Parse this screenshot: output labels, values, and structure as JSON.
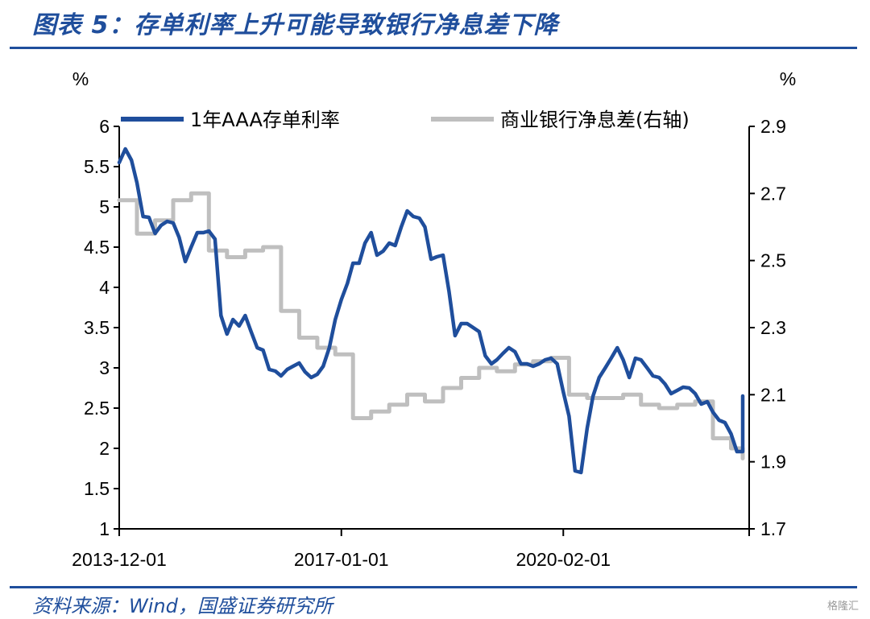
{
  "header": {
    "title": "图表 5：存单利率上升可能导致银行净息差下降"
  },
  "footer": {
    "source": "资料来源：Wind，国盛证券研究所",
    "watermark": "格隆汇"
  },
  "chart_data": {
    "type": "line",
    "title": "",
    "left_axis": {
      "unit_label": "%",
      "min": 1,
      "max": 6,
      "step": 0.5,
      "ticks": [
        "1",
        "1.5",
        "2",
        "2.5",
        "3",
        "3.5",
        "4",
        "4.5",
        "5",
        "5.5",
        "6"
      ]
    },
    "right_axis": {
      "unit_label": "%",
      "min": 1.7,
      "max": 2.9,
      "step": 0.2,
      "ticks": [
        "1.7",
        "1.9",
        "2.1",
        "2.3",
        "2.5",
        "2.7",
        "2.9"
      ]
    },
    "x_axis": {
      "start": "2013-12-01",
      "end": "2022-09-01",
      "tick_labels": [
        "2013-12-01",
        "2017-01-01",
        "2020-02-01"
      ]
    },
    "grid": false,
    "legend_position": "top",
    "series": [
      {
        "name": "1年AAA存单利率",
        "axis": "left",
        "color": "#1f4e9c",
        "points": [
          [
            "2013-12-01",
            5.55
          ],
          [
            "2014-01-01",
            5.72
          ],
          [
            "2014-02-01",
            5.58
          ],
          [
            "2014-03-01",
            5.3
          ],
          [
            "2014-04-01",
            4.88
          ],
          [
            "2014-05-01",
            4.87
          ],
          [
            "2014-06-01",
            4.67
          ],
          [
            "2014-07-01",
            4.77
          ],
          [
            "2014-08-01",
            4.82
          ],
          [
            "2014-09-01",
            4.8
          ],
          [
            "2014-10-01",
            4.62
          ],
          [
            "2014-11-01",
            4.32
          ],
          [
            "2014-12-01",
            4.5
          ],
          [
            "2015-01-01",
            4.68
          ],
          [
            "2015-02-01",
            4.68
          ],
          [
            "2015-03-01",
            4.7
          ],
          [
            "2015-04-01",
            4.6
          ],
          [
            "2015-05-01",
            3.65
          ],
          [
            "2015-06-01",
            3.42
          ],
          [
            "2015-07-01",
            3.6
          ],
          [
            "2015-08-01",
            3.52
          ],
          [
            "2015-09-01",
            3.65
          ],
          [
            "2015-10-01",
            3.45
          ],
          [
            "2015-11-01",
            3.25
          ],
          [
            "2015-12-01",
            3.22
          ],
          [
            "2016-01-01",
            2.98
          ],
          [
            "2016-02-01",
            2.96
          ],
          [
            "2016-03-01",
            2.9
          ],
          [
            "2016-04-01",
            2.98
          ],
          [
            "2016-05-01",
            3.02
          ],
          [
            "2016-06-01",
            3.06
          ],
          [
            "2016-07-01",
            2.95
          ],
          [
            "2016-08-01",
            2.88
          ],
          [
            "2016-09-01",
            2.92
          ],
          [
            "2016-10-01",
            3.02
          ],
          [
            "2016-11-01",
            3.25
          ],
          [
            "2016-12-01",
            3.6
          ],
          [
            "2017-01-01",
            3.85
          ],
          [
            "2017-02-01",
            4.05
          ],
          [
            "2017-03-01",
            4.3
          ],
          [
            "2017-04-01",
            4.3
          ],
          [
            "2017-05-01",
            4.55
          ],
          [
            "2017-06-01",
            4.68
          ],
          [
            "2017-07-01",
            4.4
          ],
          [
            "2017-08-01",
            4.45
          ],
          [
            "2017-09-01",
            4.55
          ],
          [
            "2017-10-01",
            4.52
          ],
          [
            "2017-11-01",
            4.75
          ],
          [
            "2017-12-01",
            4.95
          ],
          [
            "2018-01-01",
            4.88
          ],
          [
            "2018-02-01",
            4.86
          ],
          [
            "2018-03-01",
            4.75
          ],
          [
            "2018-04-01",
            4.35
          ],
          [
            "2018-05-01",
            4.38
          ],
          [
            "2018-06-01",
            4.4
          ],
          [
            "2018-07-01",
            3.95
          ],
          [
            "2018-08-01",
            3.4
          ],
          [
            "2018-09-01",
            3.55
          ],
          [
            "2018-10-01",
            3.55
          ],
          [
            "2018-11-01",
            3.5
          ],
          [
            "2018-12-01",
            3.45
          ],
          [
            "2019-01-01",
            3.15
          ],
          [
            "2019-02-01",
            3.05
          ],
          [
            "2019-03-01",
            3.1
          ],
          [
            "2019-04-01",
            3.18
          ],
          [
            "2019-05-01",
            3.25
          ],
          [
            "2019-06-01",
            3.2
          ],
          [
            "2019-07-01",
            3.05
          ],
          [
            "2019-08-01",
            3.05
          ],
          [
            "2019-09-01",
            3.02
          ],
          [
            "2019-10-01",
            3.05
          ],
          [
            "2019-11-01",
            3.1
          ],
          [
            "2019-12-01",
            3.12
          ],
          [
            "2020-01-01",
            3.05
          ],
          [
            "2020-02-01",
            2.7
          ],
          [
            "2020-03-01",
            2.4
          ],
          [
            "2020-04-01",
            1.72
          ],
          [
            "2020-05-01",
            1.7
          ],
          [
            "2020-06-01",
            2.25
          ],
          [
            "2020-07-01",
            2.65
          ],
          [
            "2020-08-01",
            2.88
          ],
          [
            "2020-09-01",
            3.0
          ],
          [
            "2020-10-01",
            3.12
          ],
          [
            "2020-11-01",
            3.25
          ],
          [
            "2020-12-01",
            3.1
          ],
          [
            "2021-01-01",
            2.88
          ],
          [
            "2021-02-01",
            3.12
          ],
          [
            "2021-03-01",
            3.1
          ],
          [
            "2021-04-01",
            3.0
          ],
          [
            "2021-05-01",
            2.9
          ],
          [
            "2021-06-01",
            2.88
          ],
          [
            "2021-07-01",
            2.8
          ],
          [
            "2021-08-01",
            2.68
          ],
          [
            "2021-09-01",
            2.72
          ],
          [
            "2021-10-01",
            2.76
          ],
          [
            "2021-11-01",
            2.75
          ],
          [
            "2021-12-01",
            2.68
          ],
          [
            "2022-01-01",
            2.55
          ],
          [
            "2022-02-01",
            2.58
          ],
          [
            "2022-03-01",
            2.45
          ],
          [
            "2022-04-01",
            2.35
          ],
          [
            "2022-05-01",
            2.32
          ],
          [
            "2022-06-01",
            2.18
          ],
          [
            "2022-07-01",
            1.96
          ],
          [
            "2022-08-01",
            1.96
          ],
          [
            "2022-09-01",
            2.22
          ],
          [
            "2022-10-01",
            2.62
          ],
          [
            "2022-11-01",
            2.52
          ],
          [
            "2022-12-01",
            2.65
          ]
        ]
      },
      {
        "name": "商业银行净息差(右轴)",
        "axis": "right",
        "color": "#bfbfbf",
        "points": [
          [
            "2013-12-01",
            2.68
          ],
          [
            "2014-03-01",
            2.68
          ],
          [
            "2014-03-01",
            2.58
          ],
          [
            "2014-06-01",
            2.58
          ],
          [
            "2014-06-01",
            2.62
          ],
          [
            "2014-09-01",
            2.62
          ],
          [
            "2014-09-01",
            2.68
          ],
          [
            "2014-12-01",
            2.68
          ],
          [
            "2014-12-01",
            2.7
          ],
          [
            "2015-03-01",
            2.7
          ],
          [
            "2015-03-01",
            2.53
          ],
          [
            "2015-06-01",
            2.53
          ],
          [
            "2015-06-01",
            2.51
          ],
          [
            "2015-09-01",
            2.51
          ],
          [
            "2015-09-01",
            2.53
          ],
          [
            "2015-12-01",
            2.53
          ],
          [
            "2015-12-01",
            2.54
          ],
          [
            "2016-03-01",
            2.54
          ],
          [
            "2016-03-01",
            2.35
          ],
          [
            "2016-06-01",
            2.35
          ],
          [
            "2016-06-01",
            2.27
          ],
          [
            "2016-09-01",
            2.27
          ],
          [
            "2016-09-01",
            2.24
          ],
          [
            "2016-12-01",
            2.24
          ],
          [
            "2016-12-01",
            2.22
          ],
          [
            "2017-03-01",
            2.22
          ],
          [
            "2017-03-01",
            2.03
          ],
          [
            "2017-06-01",
            2.03
          ],
          [
            "2017-06-01",
            2.05
          ],
          [
            "2017-09-01",
            2.05
          ],
          [
            "2017-09-01",
            2.07
          ],
          [
            "2017-12-01",
            2.07
          ],
          [
            "2017-12-01",
            2.1
          ],
          [
            "2018-03-01",
            2.1
          ],
          [
            "2018-03-01",
            2.08
          ],
          [
            "2018-06-01",
            2.08
          ],
          [
            "2018-06-01",
            2.12
          ],
          [
            "2018-09-01",
            2.12
          ],
          [
            "2018-09-01",
            2.15
          ],
          [
            "2018-12-01",
            2.15
          ],
          [
            "2018-12-01",
            2.18
          ],
          [
            "2019-03-01",
            2.18
          ],
          [
            "2019-03-01",
            2.17
          ],
          [
            "2019-06-01",
            2.17
          ],
          [
            "2019-06-01",
            2.19
          ],
          [
            "2019-09-01",
            2.19
          ],
          [
            "2019-09-01",
            2.2
          ],
          [
            "2019-12-01",
            2.2
          ],
          [
            "2019-12-01",
            2.21
          ],
          [
            "2020-03-01",
            2.21
          ],
          [
            "2020-03-01",
            2.1
          ],
          [
            "2020-06-01",
            2.1
          ],
          [
            "2020-06-01",
            2.09
          ],
          [
            "2020-09-01",
            2.09
          ],
          [
            "2020-09-01",
            2.09
          ],
          [
            "2020-12-01",
            2.09
          ],
          [
            "2020-12-01",
            2.1
          ],
          [
            "2021-03-01",
            2.1
          ],
          [
            "2021-03-01",
            2.07
          ],
          [
            "2021-06-01",
            2.07
          ],
          [
            "2021-06-01",
            2.06
          ],
          [
            "2021-09-01",
            2.06
          ],
          [
            "2021-09-01",
            2.07
          ],
          [
            "2021-12-01",
            2.07
          ],
          [
            "2021-12-01",
            2.08
          ],
          [
            "2022-03-01",
            2.08
          ],
          [
            "2022-03-01",
            1.97
          ],
          [
            "2022-06-01",
            1.97
          ],
          [
            "2022-06-01",
            1.94
          ],
          [
            "2022-09-01",
            1.94
          ],
          [
            "2022-09-01",
            1.94
          ],
          [
            "2022-12-01",
            1.94
          ],
          [
            "2022-12-01",
            1.91
          ],
          [
            "2023-01-01",
            1.91
          ]
        ]
      }
    ]
  }
}
